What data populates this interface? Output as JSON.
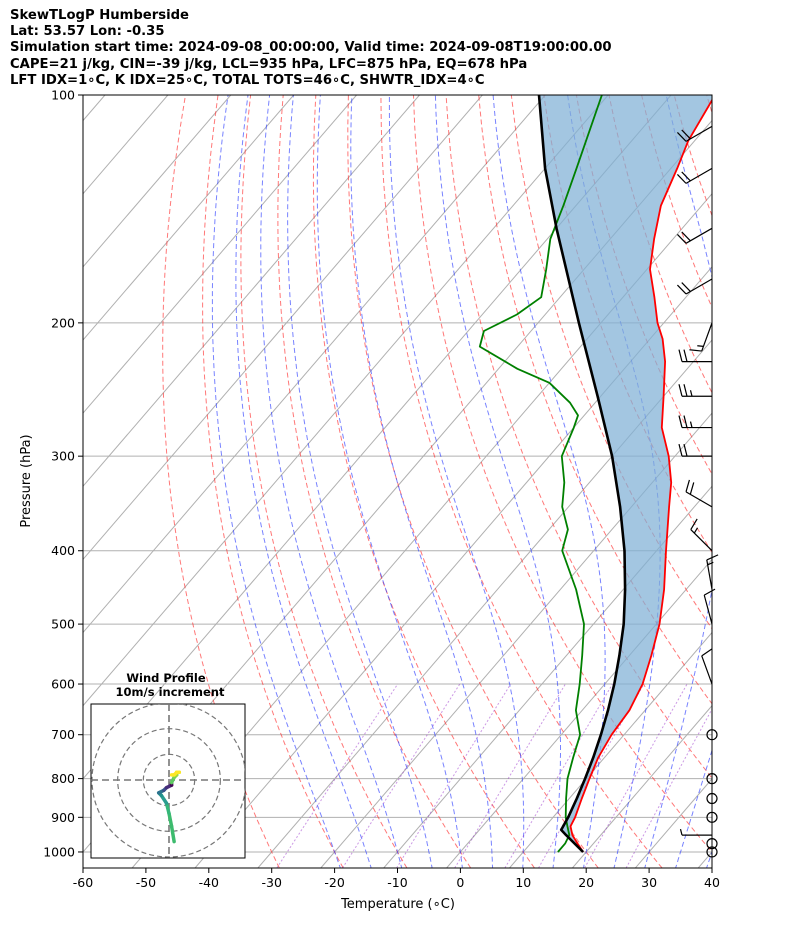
{
  "header": {
    "line1": "SkewTLogP Humberside",
    "line2": "Lat: 53.57   Lon: -0.35",
    "line3": "Simulation start time: 2024-09-08_00:00:00, Valid time: 2024-09-08T19:00:00.00",
    "line4": "CAPE=21 j/kg, CIN=-39 j/kg, LCL=935 hPa, LFC=875 hPa, EQ=678 hPa",
    "line5": "LFT IDX=1∘C, K IDX=25∘C, TOTAL TOTS=46∘C, SHWTR_IDX=4∘C"
  },
  "chart_data": {
    "type": "skewt",
    "xlabel": "Temperature (∘C)",
    "ylabel": "Pressure (hPa)",
    "xlim": [
      -60,
      40
    ],
    "ylim": [
      1050,
      100
    ],
    "x_ticks": [
      -60,
      -50,
      -40,
      -30,
      -20,
      -10,
      0,
      10,
      20,
      30,
      40
    ],
    "y_ticks": [
      1000,
      900,
      800,
      700,
      600,
      500,
      400,
      300,
      200,
      100
    ],
    "y_scale": "log",
    "grid": true,
    "series": [
      {
        "role": "temperature",
        "color": "#ff0000",
        "points": [
          [
            1000,
            19.5
          ],
          [
            975,
            17.5
          ],
          [
            950,
            15.5
          ],
          [
            925,
            14.0
          ],
          [
            900,
            13.5
          ],
          [
            850,
            12.0
          ],
          [
            800,
            10.5
          ],
          [
            750,
            9.0
          ],
          [
            700,
            8.0
          ],
          [
            650,
            7.5
          ],
          [
            600,
            6.0
          ],
          [
            550,
            3.5
          ],
          [
            500,
            0.5
          ],
          [
            450,
            -3.5
          ],
          [
            400,
            -8.5
          ],
          [
            350,
            -14.0
          ],
          [
            325,
            -17.0
          ],
          [
            300,
            -21.0
          ],
          [
            275,
            -26.0
          ],
          [
            250,
            -30.0
          ],
          [
            225,
            -34.5
          ],
          [
            210,
            -38.0
          ],
          [
            200,
            -41.0
          ],
          [
            185,
            -45.0
          ],
          [
            170,
            -49.5
          ],
          [
            155,
            -53.0
          ],
          [
            140,
            -56.5
          ],
          [
            125,
            -59.0
          ],
          [
            115,
            -61.0
          ],
          [
            100,
            -63.0
          ]
        ]
      },
      {
        "role": "dewpoint",
        "color": "#008000",
        "points": [
          [
            1000,
            15.5
          ],
          [
            975,
            15.5
          ],
          [
            950,
            15.0
          ],
          [
            925,
            13.5
          ],
          [
            900,
            12.0
          ],
          [
            850,
            9.5
          ],
          [
            800,
            7.0
          ],
          [
            750,
            5.0
          ],
          [
            700,
            3.0
          ],
          [
            650,
            -1.0
          ],
          [
            600,
            -4.0
          ],
          [
            550,
            -7.5
          ],
          [
            500,
            -11.5
          ],
          [
            450,
            -17.5
          ],
          [
            400,
            -25.0
          ],
          [
            375,
            -27.0
          ],
          [
            350,
            -31.0
          ],
          [
            325,
            -34.0
          ],
          [
            300,
            -38.0
          ],
          [
            275,
            -40.0
          ],
          [
            265,
            -41.0
          ],
          [
            255,
            -44.0
          ],
          [
            240,
            -50.0
          ],
          [
            230,
            -57.0
          ],
          [
            215,
            -66.0
          ],
          [
            205,
            -67.5
          ],
          [
            195,
            -64.5
          ],
          [
            185,
            -63.0
          ],
          [
            170,
            -66.0
          ],
          [
            155,
            -69.5
          ],
          [
            140,
            -72.0
          ],
          [
            125,
            -75.0
          ],
          [
            100,
            -81.0
          ]
        ]
      },
      {
        "role": "parcel",
        "color": "#000000",
        "points": [
          [
            1000,
            19.5
          ],
          [
            950,
            14.5
          ],
          [
            935,
            13.0
          ],
          [
            900,
            12.4
          ],
          [
            850,
            11.2
          ],
          [
            800,
            9.8
          ],
          [
            750,
            8.2
          ],
          [
            700,
            6.3
          ],
          [
            650,
            4.1
          ],
          [
            600,
            1.5
          ],
          [
            550,
            -1.6
          ],
          [
            500,
            -5.2
          ],
          [
            450,
            -9.7
          ],
          [
            400,
            -15.1
          ],
          [
            350,
            -21.8
          ],
          [
            300,
            -30.0
          ],
          [
            250,
            -40.5
          ],
          [
            200,
            -53.5
          ],
          [
            150,
            -70.0
          ],
          [
            125,
            -80.0
          ],
          [
            100,
            -91.0
          ]
        ]
      }
    ],
    "wind_barbs": [
      {
        "p": 1000,
        "speed": 0,
        "dir": 0
      },
      {
        "p": 975,
        "speed": 0,
        "dir": 0
      },
      {
        "p": 950,
        "speed": 5,
        "dir": 270
      },
      {
        "p": 900,
        "speed": 0,
        "dir": 0
      },
      {
        "p": 850,
        "speed": 0,
        "dir": 0
      },
      {
        "p": 800,
        "speed": 0,
        "dir": 0
      },
      {
        "p": 700,
        "speed": 0,
        "dir": 0
      },
      {
        "p": 600,
        "speed": 10,
        "dir": 340
      },
      {
        "p": 500,
        "speed": 10,
        "dir": 345
      },
      {
        "p": 450,
        "speed": 15,
        "dir": 350
      },
      {
        "p": 400,
        "speed": 15,
        "dir": 315
      },
      {
        "p": 350,
        "speed": 20,
        "dir": 300
      },
      {
        "p": 300,
        "speed": 20,
        "dir": 270
      },
      {
        "p": 275,
        "speed": 25,
        "dir": 270
      },
      {
        "p": 250,
        "speed": 25,
        "dir": 270
      },
      {
        "p": 225,
        "speed": 20,
        "dir": 270
      },
      {
        "p": 200,
        "speed": 15,
        "dir": 200
      },
      {
        "p": 175,
        "speed": 20,
        "dir": 240
      },
      {
        "p": 150,
        "speed": 20,
        "dir": 240
      },
      {
        "p": 125,
        "speed": 20,
        "dir": 240
      },
      {
        "p": 110,
        "speed": 20,
        "dir": 240
      }
    ],
    "hodograph": {
      "title": "Wind Profile",
      "subtitle": "10m/s increment",
      "rings_ms": [
        10,
        20,
        30
      ],
      "max_ms": 30,
      "points_uv": [
        [
          2,
          -24
        ],
        [
          1,
          -18
        ],
        [
          0,
          -13
        ],
        [
          -1,
          -9
        ],
        [
          -3,
          -6
        ],
        [
          -4,
          -5
        ],
        [
          -2,
          -4
        ],
        [
          -1,
          -3
        ],
        [
          1,
          -2
        ],
        [
          1,
          -1
        ],
        [
          2,
          1
        ],
        [
          3,
          2
        ],
        [
          3,
          3
        ],
        [
          4,
          3
        ],
        [
          3,
          3
        ],
        [
          2,
          2
        ],
        [
          1,
          2
        ]
      ]
    }
  }
}
